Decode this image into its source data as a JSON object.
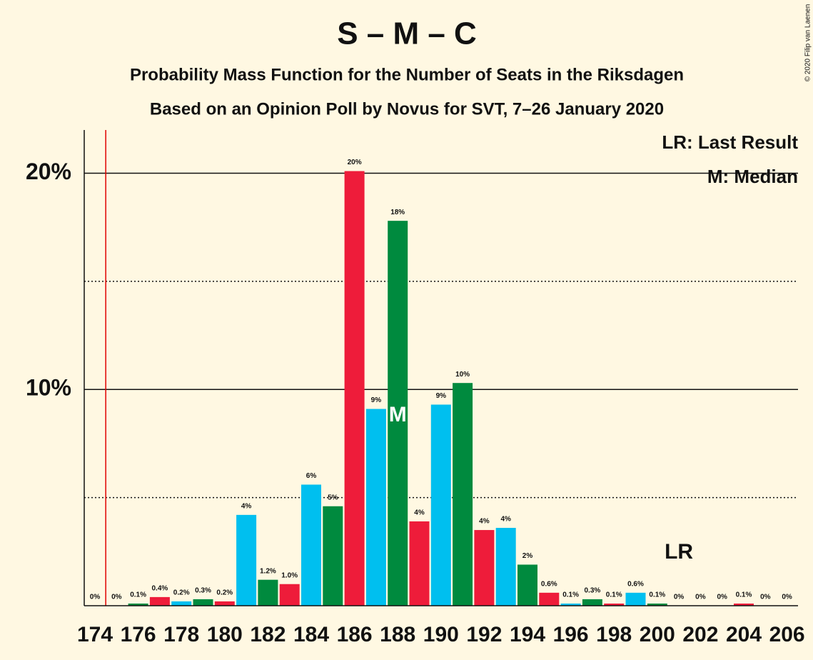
{
  "chart_data": {
    "type": "bar",
    "title": "S – M – C",
    "subtitle": "Probability Mass Function for the Number of Seats in the Riksdagen",
    "subtitle2": "Based on an Opinion Poll by Novus for SVT, 7–26 January 2020",
    "copyright": "© 2020 Filip van Laenen",
    "legend": [
      "LR: Last Result",
      "M: Median"
    ],
    "categories": [
      "174",
      null,
      "176",
      null,
      "178",
      null,
      "180",
      null,
      "182",
      null,
      "184",
      null,
      "186",
      null,
      "188",
      null,
      "190",
      null,
      "192",
      null,
      "194",
      null,
      "196",
      null,
      "198",
      null,
      "200",
      null,
      "202",
      null,
      "204",
      null,
      "206"
    ],
    "values": [
      0,
      0,
      0.1,
      0.4,
      0.2,
      0.3,
      0.2,
      4.2,
      1.2,
      1.0,
      5.6,
      4.6,
      20.1,
      9.1,
      17.8,
      3.9,
      9.3,
      10.3,
      3.5,
      3.6,
      1.9,
      0.6,
      0.1,
      0.3,
      0.1,
      0.6,
      0.1,
      0,
      0,
      0,
      0.1,
      0,
      0
    ],
    "value_labels": [
      "0%",
      "0%",
      "0.1%",
      "0.4%",
      "0.2%",
      "0.3%",
      "0.2%",
      "4%",
      "1.2%",
      "1.0%",
      "6%",
      "5%",
      "20%",
      "9%",
      "18%",
      "4%",
      "9%",
      "10%",
      "4%",
      "4%",
      "2%",
      "0.6%",
      "0.1%",
      "0.3%",
      "0.1%",
      "0.6%",
      "0.1%",
      "0%",
      "0%",
      "0%",
      "0.1%",
      "0%",
      "0%"
    ],
    "colors": [
      "#008a3e",
      "#00bfef",
      "#008a3e",
      "#ee1c3a",
      "#00bfef",
      "#008a3e",
      "#ee1c3a",
      "#00bfef",
      "#008a3e",
      "#ee1c3a",
      "#00bfef",
      "#008a3e",
      "#ee1c3a",
      "#00bfef",
      "#008a3e",
      "#ee1c3a",
      "#00bfef",
      "#008a3e",
      "#ee1c3a",
      "#00bfef",
      "#008a3e",
      "#ee1c3a",
      "#00bfef",
      "#008a3e",
      "#ee1c3a",
      "#00bfef",
      "#008a3e",
      "#ee1c3a",
      "#00bfef",
      "#008a3e",
      "#ee1c3a",
      "#00bfef",
      "#008a3e"
    ],
    "ylim": [
      0,
      22
    ],
    "yticks": [
      {
        "value": 10,
        "label": "10%"
      },
      {
        "value": 20,
        "label": "20%"
      }
    ],
    "minor_yticks": [
      5,
      15
    ],
    "median_index": 14,
    "median_label": "M",
    "last_result_index": 27,
    "last_result_label": "LR",
    "majority_line_x": 0.5,
    "majority_color": "#e00000"
  }
}
